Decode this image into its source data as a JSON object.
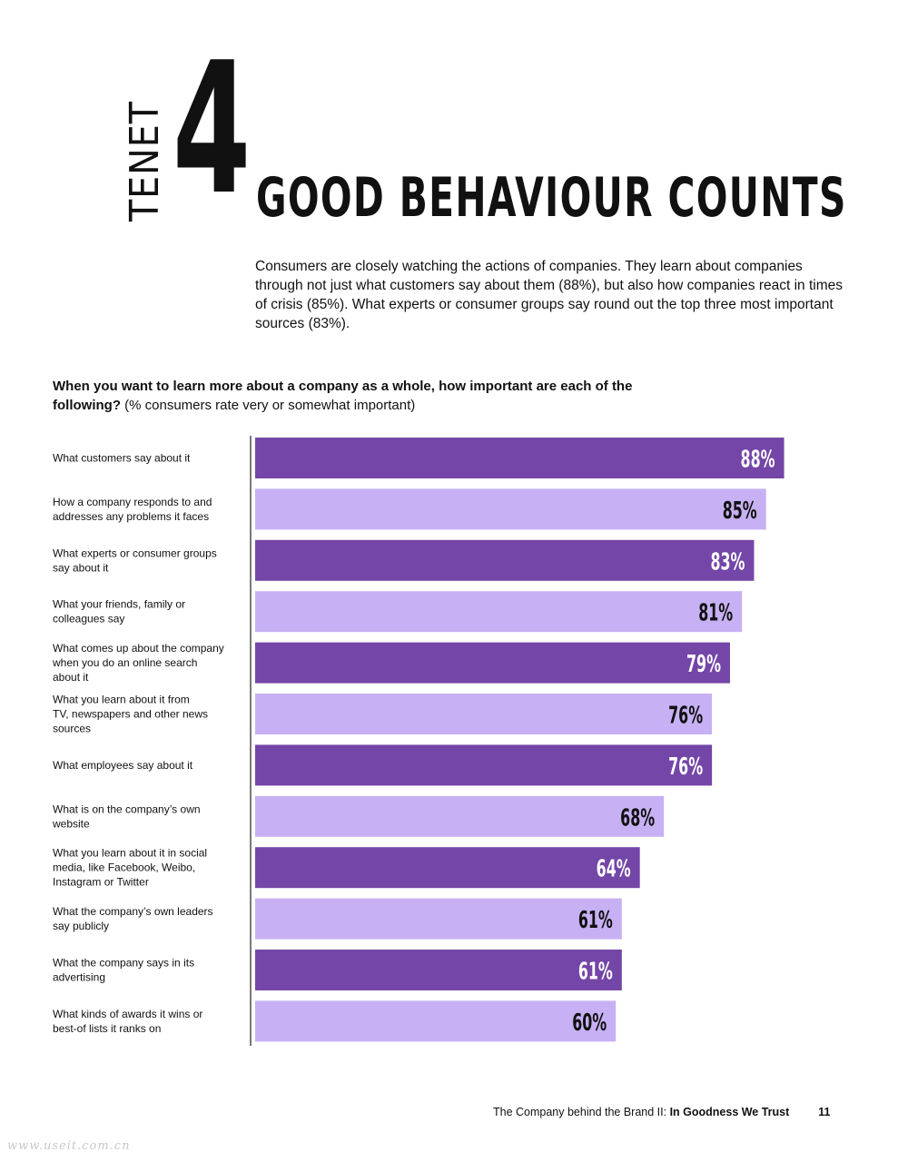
{
  "tenet": {
    "word": "TENET",
    "number": "4"
  },
  "headline": "GOOD BEHAVIOUR COUNTS",
  "intro": "Consumers are closely watching the actions of companies. They learn about companies through not just what customers say about them (88%), but also how companies react in times of crisis (85%). What experts or consumer groups say round out the top three most important sources (83%).",
  "question": {
    "bold": "When you want to learn more about a company as a whole, how important are each of the following?",
    "note": "(% consumers rate very or somewhat important)"
  },
  "chart_data": {
    "type": "bar",
    "orientation": "horizontal",
    "value_suffix": "%",
    "categories": [
      "What customers say about it",
      "How a company responds to and addresses any problems it faces",
      "What experts or consumer groups say about it",
      "What your friends, family or colleagues say",
      "What comes up about the company when you do an online search about it",
      "What you learn about it from TV, newspapers and other news sources",
      "What employees say about it",
      "What is on the company’s own website",
      "What you learn about it in social media, like Facebook, Weibo, Instagram or Twitter",
      "What the company’s own leaders say publicly",
      "What the company says in its advertising",
      "What kinds of awards it wins or best-of lists it ranks on"
    ],
    "label_lines": [
      [
        "What customers say about it"
      ],
      [
        "How a company responds to and",
        "addresses any problems it faces"
      ],
      [
        "What experts or consumer groups",
        "say about it"
      ],
      [
        "What your friends, family or",
        "colleagues say"
      ],
      [
        "What comes up about the company",
        "when you do an online search",
        "about it"
      ],
      [
        "What you learn about it from",
        "TV, newspapers and other news",
        "sources"
      ],
      [
        "What employees say about it"
      ],
      [
        "What is on the company’s own",
        "website"
      ],
      [
        "What you learn about it in social",
        "media, like Facebook, Weibo,",
        "Instagram or Twitter"
      ],
      [
        "What the company’s own leaders",
        "say publicly"
      ],
      [
        "What the company says in its",
        "advertising"
      ],
      [
        "What kinds of awards it wins or",
        "best-of lists it ranks on"
      ]
    ],
    "values": [
      88,
      85,
      83,
      81,
      79,
      76,
      76,
      68,
      64,
      61,
      61,
      60
    ],
    "xlim": [
      0,
      100
    ],
    "colors": {
      "dark": "#7446a8",
      "light": "#c7b1f4",
      "axis": "#222222"
    }
  },
  "footer": {
    "text": "The Company behind the Brand II: ",
    "bold": "In Goodness We Trust",
    "page": "11"
  },
  "watermark": "www.useit.com.cn"
}
